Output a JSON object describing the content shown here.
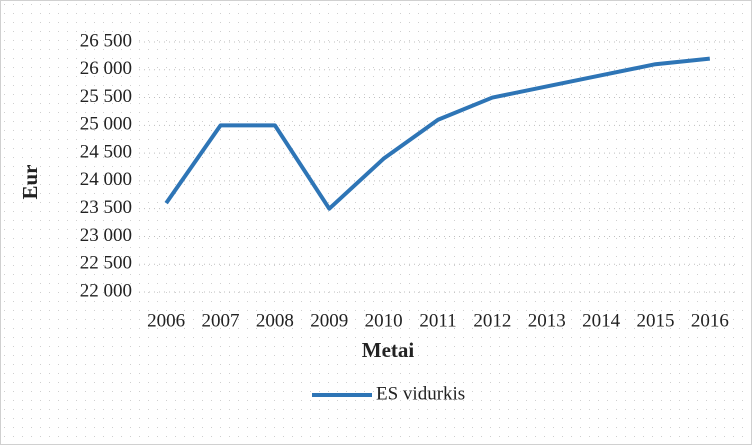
{
  "chart_data": {
    "type": "line",
    "x_label": "Metai",
    "y_label": "Eur",
    "categories": [
      "2006",
      "2007",
      "2008",
      "2009",
      "2010",
      "2011",
      "2012",
      "2013",
      "2014",
      "2015",
      "2016"
    ],
    "series": [
      {
        "name": "ES vidurkis",
        "color": "#2e75b6",
        "values": [
          23600,
          25000,
          25000,
          23500,
          24400,
          25100,
          25500,
          25700,
          25900,
          26100,
          26200
        ]
      }
    ],
    "ylim": [
      22000,
      26500
    ],
    "yticks": [
      {
        "value": 22000,
        "label": "22 000"
      },
      {
        "value": 22500,
        "label": "22 500"
      },
      {
        "value": 23000,
        "label": "23 000"
      },
      {
        "value": 23500,
        "label": "23 500"
      },
      {
        "value": 24000,
        "label": "24 000"
      },
      {
        "value": 24500,
        "label": "24 500"
      },
      {
        "value": 25000,
        "label": "25 000"
      },
      {
        "value": 25500,
        "label": "25 500"
      },
      {
        "value": 26000,
        "label": "26 000"
      },
      {
        "value": 26500,
        "label": "26 500"
      }
    ],
    "grid": true,
    "legend": "bottom"
  }
}
